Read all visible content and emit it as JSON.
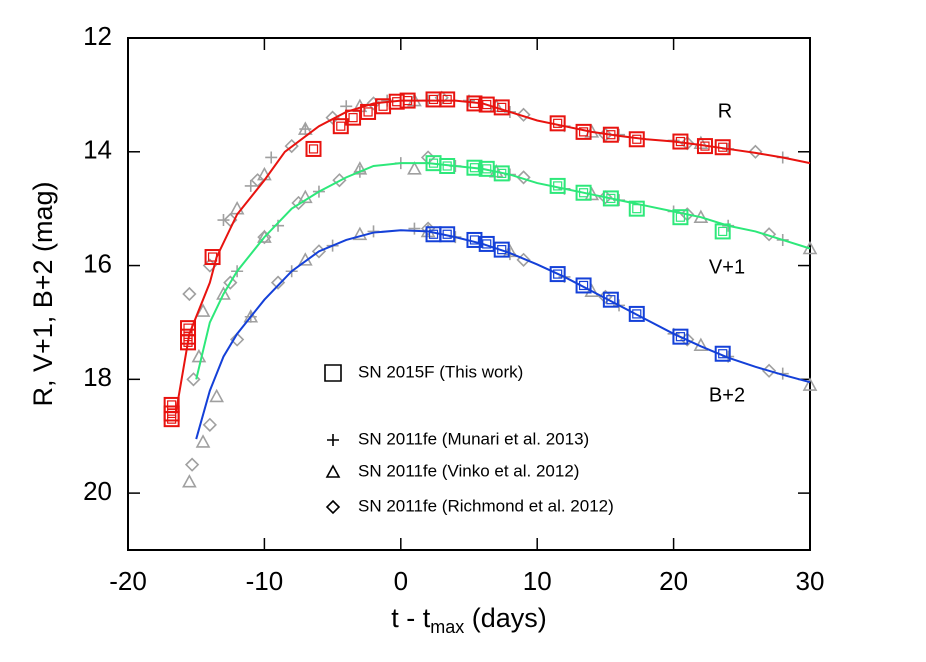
{
  "chart_data": {
    "type": "scatter",
    "ylabel": "R, V+1, B+2 (mag)",
    "xlabel": {
      "main": "t - t",
      "sub": "max",
      "tail": " (days)"
    },
    "xlim": [
      -20,
      30
    ],
    "ylim": [
      12,
      21
    ],
    "y_inverted": true,
    "xticks": [
      -20,
      -10,
      0,
      10,
      20,
      30
    ],
    "yticks": [
      12,
      14,
      16,
      18,
      20
    ],
    "bands": [
      {
        "name": "R",
        "color": "#e8130f"
      },
      {
        "name": "V+1",
        "color": "#2de87a"
      },
      {
        "name": "B+2",
        "color": "#1440d8"
      }
    ],
    "models": [
      {
        "band": 0,
        "x": [
          -16.5,
          -15.5,
          -14,
          -13.5,
          -12,
          -10,
          -8.5,
          -6,
          -4,
          -2,
          0,
          2,
          4,
          6,
          8,
          10,
          12,
          14,
          16,
          18,
          20,
          22,
          24,
          26,
          28,
          30
        ],
        "y": [
          18.6,
          17.2,
          16.3,
          15.85,
          15.1,
          14.5,
          14.0,
          13.55,
          13.3,
          13.15,
          13.1,
          13.1,
          13.1,
          13.15,
          13.3,
          13.45,
          13.55,
          13.65,
          13.72,
          13.78,
          13.82,
          13.88,
          13.95,
          14.02,
          14.1,
          14.2
        ]
      },
      {
        "band": 1,
        "x": [
          -15,
          -14,
          -13,
          -12,
          -10,
          -8,
          -6,
          -4,
          -2,
          0,
          2,
          4,
          6,
          8,
          10,
          12,
          14,
          16,
          18,
          20,
          22,
          24,
          26,
          28,
          30
        ],
        "y": [
          18.0,
          17.0,
          16.5,
          16.1,
          15.5,
          15.0,
          14.7,
          14.45,
          14.25,
          14.2,
          14.2,
          14.25,
          14.3,
          14.4,
          14.55,
          14.65,
          14.75,
          14.85,
          14.95,
          15.05,
          15.15,
          15.3,
          15.4,
          15.55,
          15.7
        ]
      },
      {
        "band": 2,
        "x": [
          -15,
          -14,
          -13,
          -12,
          -10,
          -8,
          -6,
          -4,
          -2,
          0,
          2,
          4,
          6,
          8,
          10,
          12,
          14,
          16,
          18,
          20,
          22,
          24,
          26,
          28,
          30
        ],
        "y": [
          19.05,
          18.2,
          17.6,
          17.2,
          16.6,
          16.1,
          15.75,
          15.55,
          15.42,
          15.38,
          15.4,
          15.5,
          15.62,
          15.78,
          15.98,
          16.2,
          16.45,
          16.7,
          16.95,
          17.2,
          17.42,
          17.62,
          17.78,
          17.92,
          18.05
        ]
      }
    ],
    "series": [
      {
        "name": "SN 2011fe (Munari et al. 2013)",
        "marker": "plus",
        "color": "#a0a0a0",
        "subsets": [
          {
            "band": 0,
            "x": [
              -13,
              -11,
              -9.5,
              -7,
              -4,
              -1,
              2,
              5,
              8,
              12,
              16,
              20,
              24,
              28
            ],
            "y": [
              15.2,
              14.6,
              14.1,
              13.6,
              13.2,
              13.1,
              13.1,
              13.1,
              13.3,
              13.55,
              13.7,
              13.8,
              13.95,
              14.1
            ]
          },
          {
            "band": 1,
            "x": [
              -12,
              -9,
              -6,
              -3,
              0,
              4,
              8,
              12,
              16,
              20,
              24,
              28
            ],
            "y": [
              16.1,
              15.3,
              14.7,
              14.35,
              14.2,
              14.25,
              14.4,
              14.65,
              14.85,
              15.05,
              15.3,
              15.55
            ]
          },
          {
            "band": 2,
            "x": [
              -11,
              -8,
              -5,
              -2,
              1,
              4,
              8,
              12,
              16,
              20,
              24,
              28
            ],
            "y": [
              16.9,
              16.1,
              15.65,
              15.4,
              15.35,
              15.5,
              15.8,
              16.2,
              16.7,
              17.2,
              17.6,
              17.9
            ]
          }
        ]
      },
      {
        "name": "SN 2011fe (Vinko et al. 2012)",
        "marker": "triangle",
        "color": "#a0a0a0",
        "subsets": [
          {
            "band": 0,
            "x": [
              -14.5,
              -12,
              -10,
              -7,
              -3,
              1,
              7,
              14,
              22
            ],
            "y": [
              16.8,
              15.0,
              14.4,
              13.6,
              13.2,
              13.1,
              13.2,
              13.65,
              13.85
            ]
          },
          {
            "band": 1,
            "x": [
              -14.8,
              -13,
              -10,
              -7,
              -3,
              1,
              7,
              14,
              22,
              30
            ],
            "y": [
              17.6,
              16.5,
              15.5,
              14.8,
              14.3,
              14.3,
              14.35,
              14.75,
              15.15,
              15.7
            ]
          },
          {
            "band": 2,
            "x": [
              -15.5,
              -14.5,
              -13.5,
              -11,
              -7,
              -3,
              2,
              8,
              14,
              22,
              30
            ],
            "y": [
              19.8,
              19.1,
              18.3,
              16.9,
              15.9,
              15.45,
              15.4,
              15.75,
              16.45,
              17.4,
              18.1
            ]
          }
        ]
      },
      {
        "name": "SN 2011fe (Richmond et al. 2012)",
        "marker": "diamond",
        "color": "#a0a0a0",
        "subsets": [
          {
            "band": 0,
            "x": [
              -15.5,
              -14,
              -12.5,
              -10.5,
              -8,
              -5,
              -2,
              3,
              9,
              15,
              21,
              26
            ],
            "y": [
              16.5,
              16.0,
              15.2,
              14.5,
              13.9,
              13.4,
              13.15,
              13.05,
              13.35,
              13.7,
              13.85,
              14.0
            ]
          },
          {
            "band": 1,
            "x": [
              -15.2,
              -12.5,
              -10,
              -7.5,
              -4.5,
              2,
              9,
              15,
              21,
              27
            ],
            "y": [
              18.0,
              16.3,
              15.5,
              14.9,
              14.5,
              14.1,
              14.45,
              14.8,
              15.1,
              15.45
            ]
          },
          {
            "band": 2,
            "x": [
              -15.3,
              -14,
              -12,
              -9,
              -6,
              2,
              9,
              15,
              21,
              27
            ],
            "y": [
              19.5,
              18.8,
              17.3,
              16.3,
              15.75,
              15.35,
              15.9,
              16.55,
              17.3,
              17.85
            ]
          }
        ]
      },
      {
        "name": "SN 2015F (This work)",
        "marker": "square",
        "subsets": [
          {
            "band": 0,
            "x": [
              -16.8,
              -16.8,
              -16.8,
              -15.6,
              -15.6,
              -15.6,
              -13.8,
              -6.4,
              -4.4,
              -3.5,
              -2.4,
              -1.3,
              -0.3,
              0.5,
              2.4,
              3.4,
              5.4,
              6.3,
              7.4,
              11.5,
              13.4,
              15.4,
              17.3,
              20.5,
              22.3,
              23.6
            ],
            "y": [
              18.45,
              18.6,
              18.7,
              17.1,
              17.25,
              17.35,
              15.85,
              13.95,
              13.55,
              13.4,
              13.3,
              13.2,
              13.12,
              13.1,
              13.08,
              13.08,
              13.15,
              13.17,
              13.22,
              13.5,
              13.65,
              13.7,
              13.78,
              13.82,
              13.9,
              13.92
            ]
          },
          {
            "band": 1,
            "x": [
              2.4,
              3.4,
              5.4,
              6.3,
              7.4,
              11.5,
              13.4,
              15.4,
              17.3,
              20.5,
              23.6
            ],
            "y": [
              14.2,
              14.25,
              14.28,
              14.3,
              14.38,
              14.6,
              14.72,
              14.82,
              15.0,
              15.15,
              15.4
            ]
          },
          {
            "band": 2,
            "x": [
              2.4,
              3.4,
              5.4,
              6.3,
              7.4,
              11.5,
              13.4,
              15.4,
              17.3,
              20.5,
              23.6
            ],
            "y": [
              15.45,
              15.45,
              15.55,
              15.62,
              15.72,
              16.15,
              16.35,
              16.6,
              16.85,
              17.25,
              17.55
            ]
          }
        ]
      }
    ]
  }
}
